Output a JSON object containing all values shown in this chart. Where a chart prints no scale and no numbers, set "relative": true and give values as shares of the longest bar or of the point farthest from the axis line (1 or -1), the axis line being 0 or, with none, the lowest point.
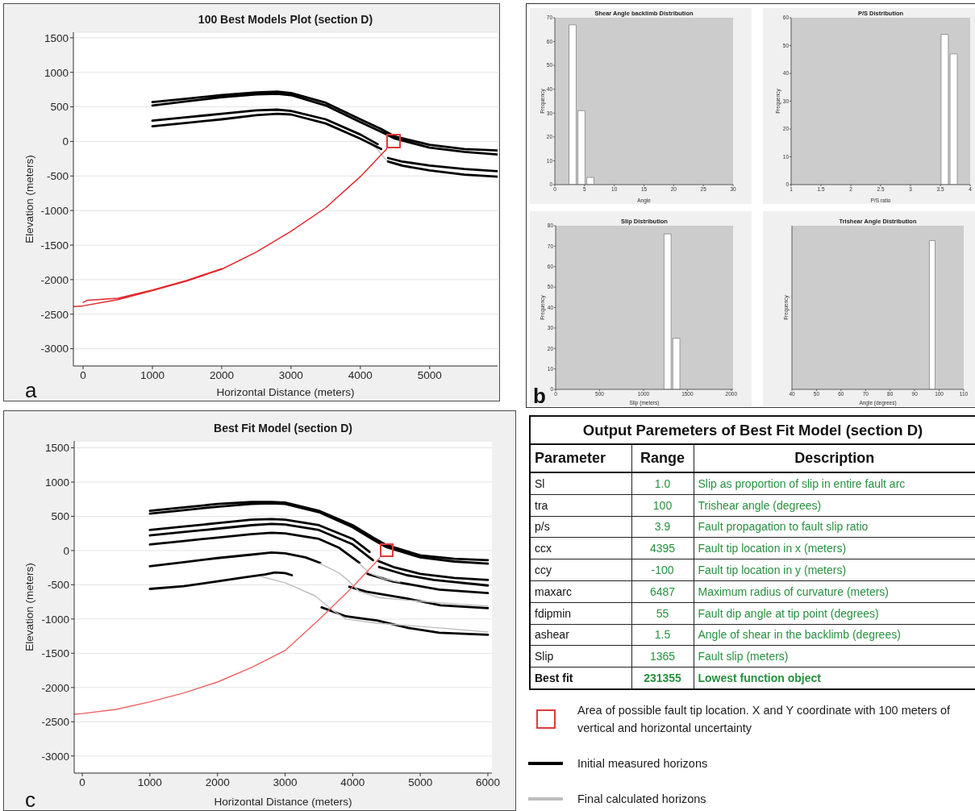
{
  "chart_data": [
    {
      "type": "line",
      "title": "100 Best Models Plot (section D)",
      "xlabel": "Horizontal Distance (meters)",
      "ylabel": "Elevation (meters)",
      "annotations": [
        "a"
      ],
      "xlim": [
        -140,
        5980
      ],
      "xticks": [
        0,
        1000,
        2000,
        3000,
        4000,
        5000
      ],
      "ylim": [
        -3250,
        1580
      ],
      "yticks": [
        -3000,
        -2500,
        -2000,
        -1500,
        -1000,
        -500,
        0,
        500,
        1000,
        1500
      ],
      "grid": "y",
      "series": [
        {
          "color": "#bdbdbd",
          "x": [
            4150,
            4260,
            4380,
            4600
          ],
          "values": [
            -20,
            -130,
            -280,
            -330
          ]
        },
        {
          "color": "#000000",
          "x": [
            1000,
            1500,
            2000,
            2500,
            2800,
            3000,
            3500,
            4000,
            4300,
            4500,
            5000,
            5500,
            5980,
            null,
            1000,
            1500,
            2000,
            2500,
            2800,
            3000,
            3500,
            4000,
            4300,
            4500,
            5000,
            5500,
            5980,
            null,
            1000,
            1500,
            2000,
            2500,
            2800,
            3000,
            3500,
            4000,
            4250,
            null,
            1000,
            1500,
            2000,
            2500,
            2800,
            3000,
            3500,
            4000,
            4300,
            null,
            4400,
            4600,
            5000,
            5500,
            5980,
            null,
            4400,
            4600,
            5000,
            5500,
            5980
          ],
          "values": [
            570,
            620,
            670,
            710,
            720,
            700,
            560,
            320,
            180,
            70,
            -50,
            -110,
            -130,
            null,
            520,
            580,
            640,
            680,
            690,
            670,
            520,
            280,
            140,
            40,
            -90,
            -150,
            -190,
            null,
            300,
            350,
            400,
            450,
            460,
            440,
            320,
            100,
            -40,
            null,
            220,
            270,
            320,
            380,
            400,
            390,
            260,
            40,
            -110,
            null,
            -240,
            -290,
            -350,
            -400,
            -430,
            null,
            -290,
            -350,
            -420,
            -480,
            -510
          ]
        },
        {
          "color": "#e3262a",
          "x": [
            -140,
            0,
            500,
            1000,
            1500,
            2000,
            2500,
            3000,
            3500,
            4000,
            4380,
            null,
            0,
            60,
            500,
            1000,
            1500,
            2000
          ],
          "values": [
            -2390,
            -2380,
            -2290,
            -2160,
            -2020,
            -1850,
            -1600,
            -1300,
            -960,
            -510,
            -110,
            null,
            -2330,
            -2300,
            -2270,
            -2150,
            -2010,
            -1840
          ]
        },
        {
          "type": "scatter",
          "marker": "square",
          "color": "#e03a3a",
          "x": [
            4480
          ],
          "values": [
            0
          ]
        }
      ]
    },
    {
      "type": "histogram",
      "title": "Shear Angle backlimb Distribution",
      "xlabel": "Angle",
      "ylabel": "Frequency",
      "bins": [
        2.25,
        3.75,
        5.25,
        6.75
      ],
      "values": [
        67,
        31,
        3
      ],
      "color": "#ffffff",
      "xlim": [
        0,
        30
      ],
      "xticks": [
        0,
        5,
        10,
        15,
        20,
        25,
        30
      ],
      "ylim": [
        0,
        70
      ],
      "yticks": [
        0,
        10,
        20,
        30,
        40,
        50,
        60,
        70
      ]
    },
    {
      "type": "histogram",
      "title": "P/S Distribution",
      "xlabel": "P/S ratio",
      "ylabel": "Frequency",
      "bins": [
        3.5,
        3.65,
        3.8
      ],
      "values": [
        54,
        47
      ],
      "color": "#ffffff",
      "xlim": [
        1,
        4
      ],
      "xticks": [
        1,
        1.5,
        2,
        2.5,
        3,
        3.5,
        4
      ],
      "ylim": [
        0,
        60
      ],
      "yticks": [
        0,
        10,
        20,
        30,
        40,
        50,
        60
      ]
    },
    {
      "type": "histogram",
      "title": "Slip Distribution",
      "xlabel": "Slip (meters)",
      "ylabel": "Frequency",
      "annotations": [
        "b"
      ],
      "bins": [
        1225,
        1325,
        1425
      ],
      "values": [
        76,
        25
      ],
      "color": "#ffffff",
      "xlim": [
        0,
        2020
      ],
      "xticks": [
        0,
        500,
        1000,
        1500,
        2000
      ],
      "ylim": [
        0,
        80
      ],
      "yticks": [
        0,
        10,
        20,
        30,
        40,
        50,
        60,
        70,
        80
      ]
    },
    {
      "type": "bar",
      "title": "Trishear Angle Distribution",
      "xlabel": "Angle (degrees)",
      "ylabel": "Frequency",
      "x": [
        97
      ],
      "values": [
        1
      ],
      "relative": true,
      "tick_labels": "x",
      "color": "#ffffff",
      "xlim": [
        40,
        110
      ],
      "xticks": [
        40,
        50,
        60,
        70,
        80,
        90,
        100,
        110
      ]
    },
    {
      "type": "line",
      "title": "Best Fit Model (section D)",
      "xlabel": "Horizontal Distance (meters)",
      "ylabel": "Elevation (meters)",
      "annotations": [
        "c"
      ],
      "xlim": [
        -120,
        6060
      ],
      "xticks": [
        0,
        1000,
        2000,
        3000,
        4000,
        5000,
        6000
      ],
      "ylim": [
        -3250,
        1600
      ],
      "yticks": [
        -3000,
        -2500,
        -2000,
        -1500,
        -1000,
        -500,
        0,
        500,
        1000,
        1500
      ],
      "grid": "y",
      "legend": "bottom right",
      "series": [
        {
          "name": "Area of possible fault tip location. X and Y coordinate with 100 meters of vertical and horizontal uncertainty",
          "type": "scatter",
          "marker": "square",
          "color": "#e03a3a",
          "x": [
            4500
          ],
          "values": [
            0
          ]
        },
        {
          "name": "Initial measured horizons",
          "color": "#000000",
          "x": [
            1000,
            1500,
            2000,
            2500,
            2800,
            3000,
            3500,
            4000,
            4300,
            4500,
            5000,
            5500,
            6000,
            null,
            1000,
            1500,
            2000,
            2500,
            2800,
            3000,
            3500,
            4000,
            4300,
            4500,
            5000,
            5500,
            6000,
            null,
            1000,
            1500,
            2000,
            2500,
            2800,
            3000,
            3500,
            4000,
            4250,
            null,
            1000,
            1500,
            2000,
            2500,
            2800,
            3000,
            3500,
            4000,
            4300,
            null,
            1000,
            1500,
            2000,
            2500,
            2800,
            3000,
            3500,
            3800,
            4100,
            null,
            1000,
            1500,
            2000,
            2500,
            2800,
            3000,
            3300,
            3520,
            null,
            1000,
            1500,
            2000,
            2400,
            2700,
            2850,
            3000,
            3100,
            null,
            4370,
            4600,
            5000,
            5500,
            6000,
            null,
            4390,
            4800,
            5200,
            6000,
            null,
            4220,
            4590,
            5280,
            6000,
            null,
            3950,
            4200,
            4800,
            5300,
            6000,
            null,
            3540,
            3900,
            4130,
            4360,
            4820,
            5280,
            6000
          ],
          "values": [
            580,
            630,
            680,
            710,
            710,
            700,
            580,
            370,
            190,
            80,
            -70,
            -120,
            -140,
            null,
            540,
            590,
            640,
            680,
            690,
            680,
            560,
            340,
            160,
            50,
            -100,
            -160,
            -190,
            null,
            300,
            350,
            400,
            450,
            460,
            450,
            370,
            170,
            -20,
            null,
            220,
            270,
            320,
            370,
            390,
            380,
            300,
            90,
            -140,
            null,
            90,
            140,
            190,
            240,
            260,
            250,
            170,
            40,
            -180,
            null,
            -230,
            -170,
            -110,
            -60,
            -30,
            -40,
            -100,
            -180,
            null,
            -560,
            -520,
            -450,
            -390,
            -350,
            -320,
            -330,
            -360,
            null,
            -150,
            -240,
            -340,
            -400,
            -430,
            null,
            -240,
            -360,
            -430,
            -510,
            null,
            -340,
            -450,
            -570,
            -620,
            null,
            -530,
            -600,
            -700,
            -800,
            -840,
            null,
            -830,
            -960,
            -990,
            -1020,
            -1130,
            -1200,
            -1230
          ]
        },
        {
          "name": "Final calculated horizons",
          "color": "#bdbdbd",
          "x": [
            3520,
            3800,
            3950,
            4100,
            4400,
            5000,
            5500,
            6000,
            null,
            2650,
            3000,
            3440,
            3700,
            3900,
            4360,
            5280,
            6000,
            null,
            4100,
            4250,
            4450,
            4700
          ],
          "values": [
            -190,
            -330,
            -450,
            -600,
            -690,
            -740,
            -780,
            -810,
            null,
            -380,
            -470,
            -660,
            -870,
            -1000,
            -1060,
            -1130,
            -1190,
            null,
            -190,
            -330,
            -410,
            -460
          ]
        },
        {
          "color": "#ee6262",
          "x": [
            -120,
            0,
            500,
            1000,
            1500,
            2000,
            2500,
            3000,
            3500,
            4000,
            4400
          ],
          "values": [
            -2390,
            -2380,
            -2320,
            -2210,
            -2080,
            -1920,
            -1710,
            -1460,
            -1010,
            -530,
            -110
          ]
        }
      ]
    },
    {
      "type": "other",
      "title": "Output Paremeters of Best Fit Model (section D)",
      "categories": [
        "Parameter",
        "Range",
        "Description"
      ],
      "annotations": [
        "Sl",
        "1.0",
        "Slip as proportion of slip in entire fault arc",
        "tra",
        "100",
        "Trishear angle (degrees)",
        "p/s",
        "3.9",
        "Fault propagation to fault slip ratio",
        "ccx",
        "4395",
        "Fault tip location in x (meters)",
        "ccy",
        "-100",
        "Fault tip location in y (meters)",
        "maxarc",
        "6487",
        "Maximum radius of curvature (meters)",
        "fdipmin",
        "55",
        "Fault dip angle at tip point (degrees)",
        "ashear",
        "1.5",
        "Angle of shear in the backlimb (degrees)",
        "Slip",
        "1365",
        "Fault slip (meters)",
        "Best fit",
        "231355",
        "Lowest function object"
      ]
    }
  ]
}
